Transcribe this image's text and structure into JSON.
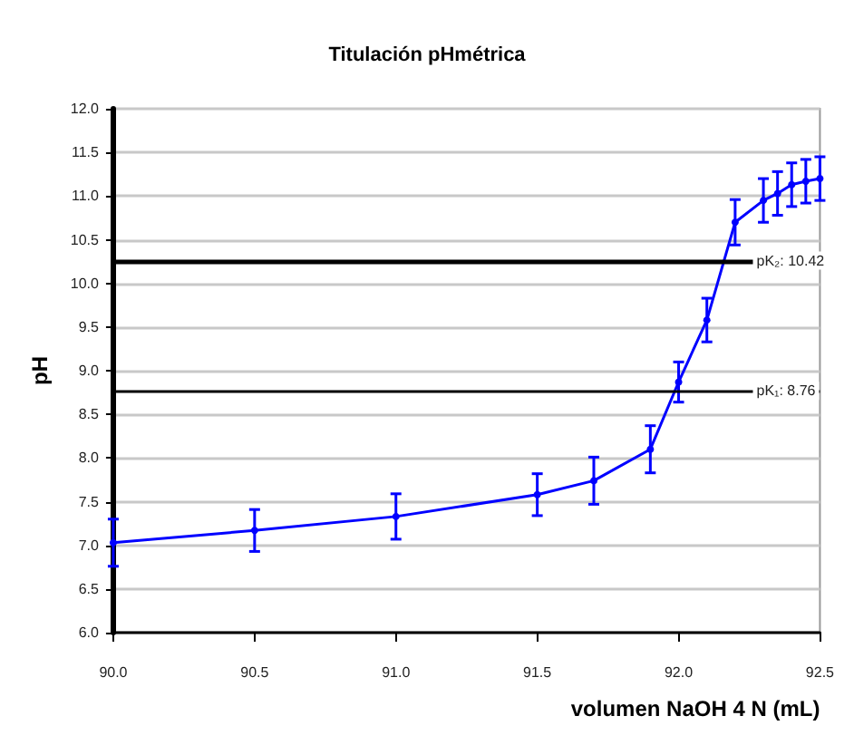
{
  "chart_data": {
    "type": "line",
    "title": "Titulación pHmétrica",
    "xlabel": "volumen NaOH 4 N (mL)",
    "ylabel": "pH",
    "x": [
      90.0,
      90.5,
      91.0,
      91.5,
      91.7,
      91.9,
      92.0,
      92.1,
      92.2,
      92.3,
      92.35,
      92.4,
      92.45,
      92.5
    ],
    "series": [
      {
        "color": "#0000ff",
        "values": [
          7.03,
          7.17,
          7.33,
          7.58,
          7.74,
          8.1,
          8.87,
          9.58,
          10.7,
          10.95,
          11.03,
          11.13,
          11.17,
          11.2
        ],
        "errors": [
          0.27,
          0.24,
          0.26,
          0.24,
          0.27,
          0.27,
          0.23,
          0.25,
          0.26,
          0.25,
          0.25,
          0.25,
          0.25,
          0.25
        ]
      }
    ],
    "xlim": [
      90.0,
      92.5
    ],
    "xticks": [
      {
        "value": 90.0,
        "label": "90.0"
      },
      {
        "value": 90.5,
        "label": "90.5"
      },
      {
        "value": 91.0,
        "label": "91.0"
      },
      {
        "value": 91.5,
        "label": "91.5"
      },
      {
        "value": 92.0,
        "label": "92.0"
      },
      {
        "value": 92.5,
        "label": "92.5"
      }
    ],
    "ylim": [
      6.0,
      12.0
    ],
    "yticks": [
      {
        "value": 6.0,
        "label": "6.0"
      },
      {
        "value": 6.5,
        "label": "6.5"
      },
      {
        "value": 7.0,
        "label": "7.0"
      },
      {
        "value": 7.5,
        "label": "7.5"
      },
      {
        "value": 8.0,
        "label": "8.0"
      },
      {
        "value": 8.5,
        "label": "8.5"
      },
      {
        "value": 9.0,
        "label": "9.0"
      },
      {
        "value": 9.5,
        "label": "9.5"
      },
      {
        "value": 10.0,
        "label": "10.0"
      },
      {
        "value": 10.5,
        "label": "10.5"
      },
      {
        "value": 11.0,
        "label": "11.0"
      },
      {
        "value": 11.5,
        "label": "11.5"
      },
      {
        "value": 12.0,
        "label": "12.0"
      }
    ],
    "ref_lines": [
      {
        "axis": "y",
        "value": 10.26,
        "color": "#000000"
      },
      {
        "axis": "y",
        "value": 8.77,
        "color": "#000000"
      }
    ],
    "annotations": [
      {
        "text": "pK₂: 10.42",
        "x": 92.25,
        "y": 10.26
      },
      {
        "text": "pK₁: 8.76",
        "x": 92.25,
        "y": 8.77
      }
    ],
    "grid": "y",
    "marker": "circle",
    "line_style": "solid"
  }
}
